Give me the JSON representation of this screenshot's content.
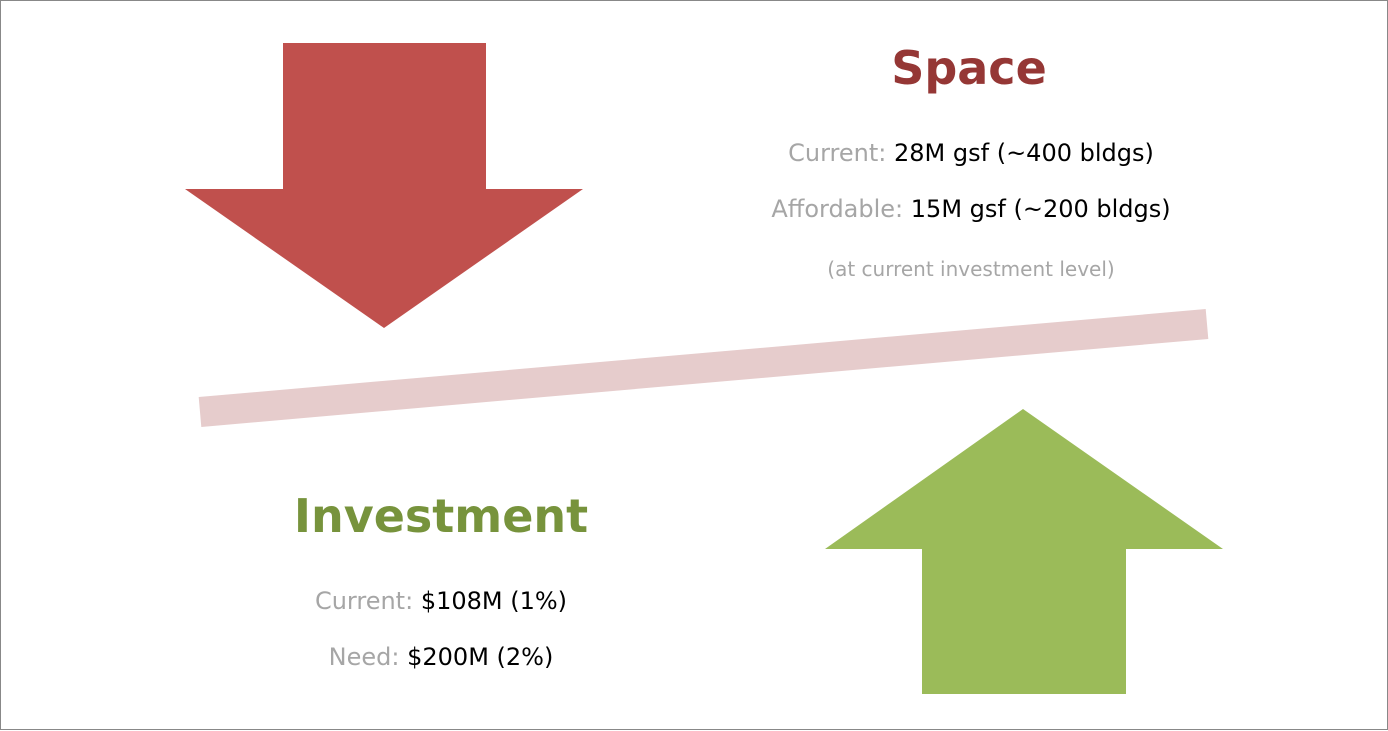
{
  "space": {
    "title": "Space",
    "lines": [
      {
        "label": "Current:",
        "value": "28M gsf (~400 bldgs)"
      },
      {
        "label": "Affordable:",
        "value": "15M gsf (~200 bldgs)"
      }
    ],
    "note": "(at current investment level)"
  },
  "investment": {
    "title": "Investment",
    "lines": [
      {
        "label": "Current:",
        "value": "$108M (1%)"
      },
      {
        "label": "Need:",
        "value": "$200M (2%)"
      }
    ]
  }
}
